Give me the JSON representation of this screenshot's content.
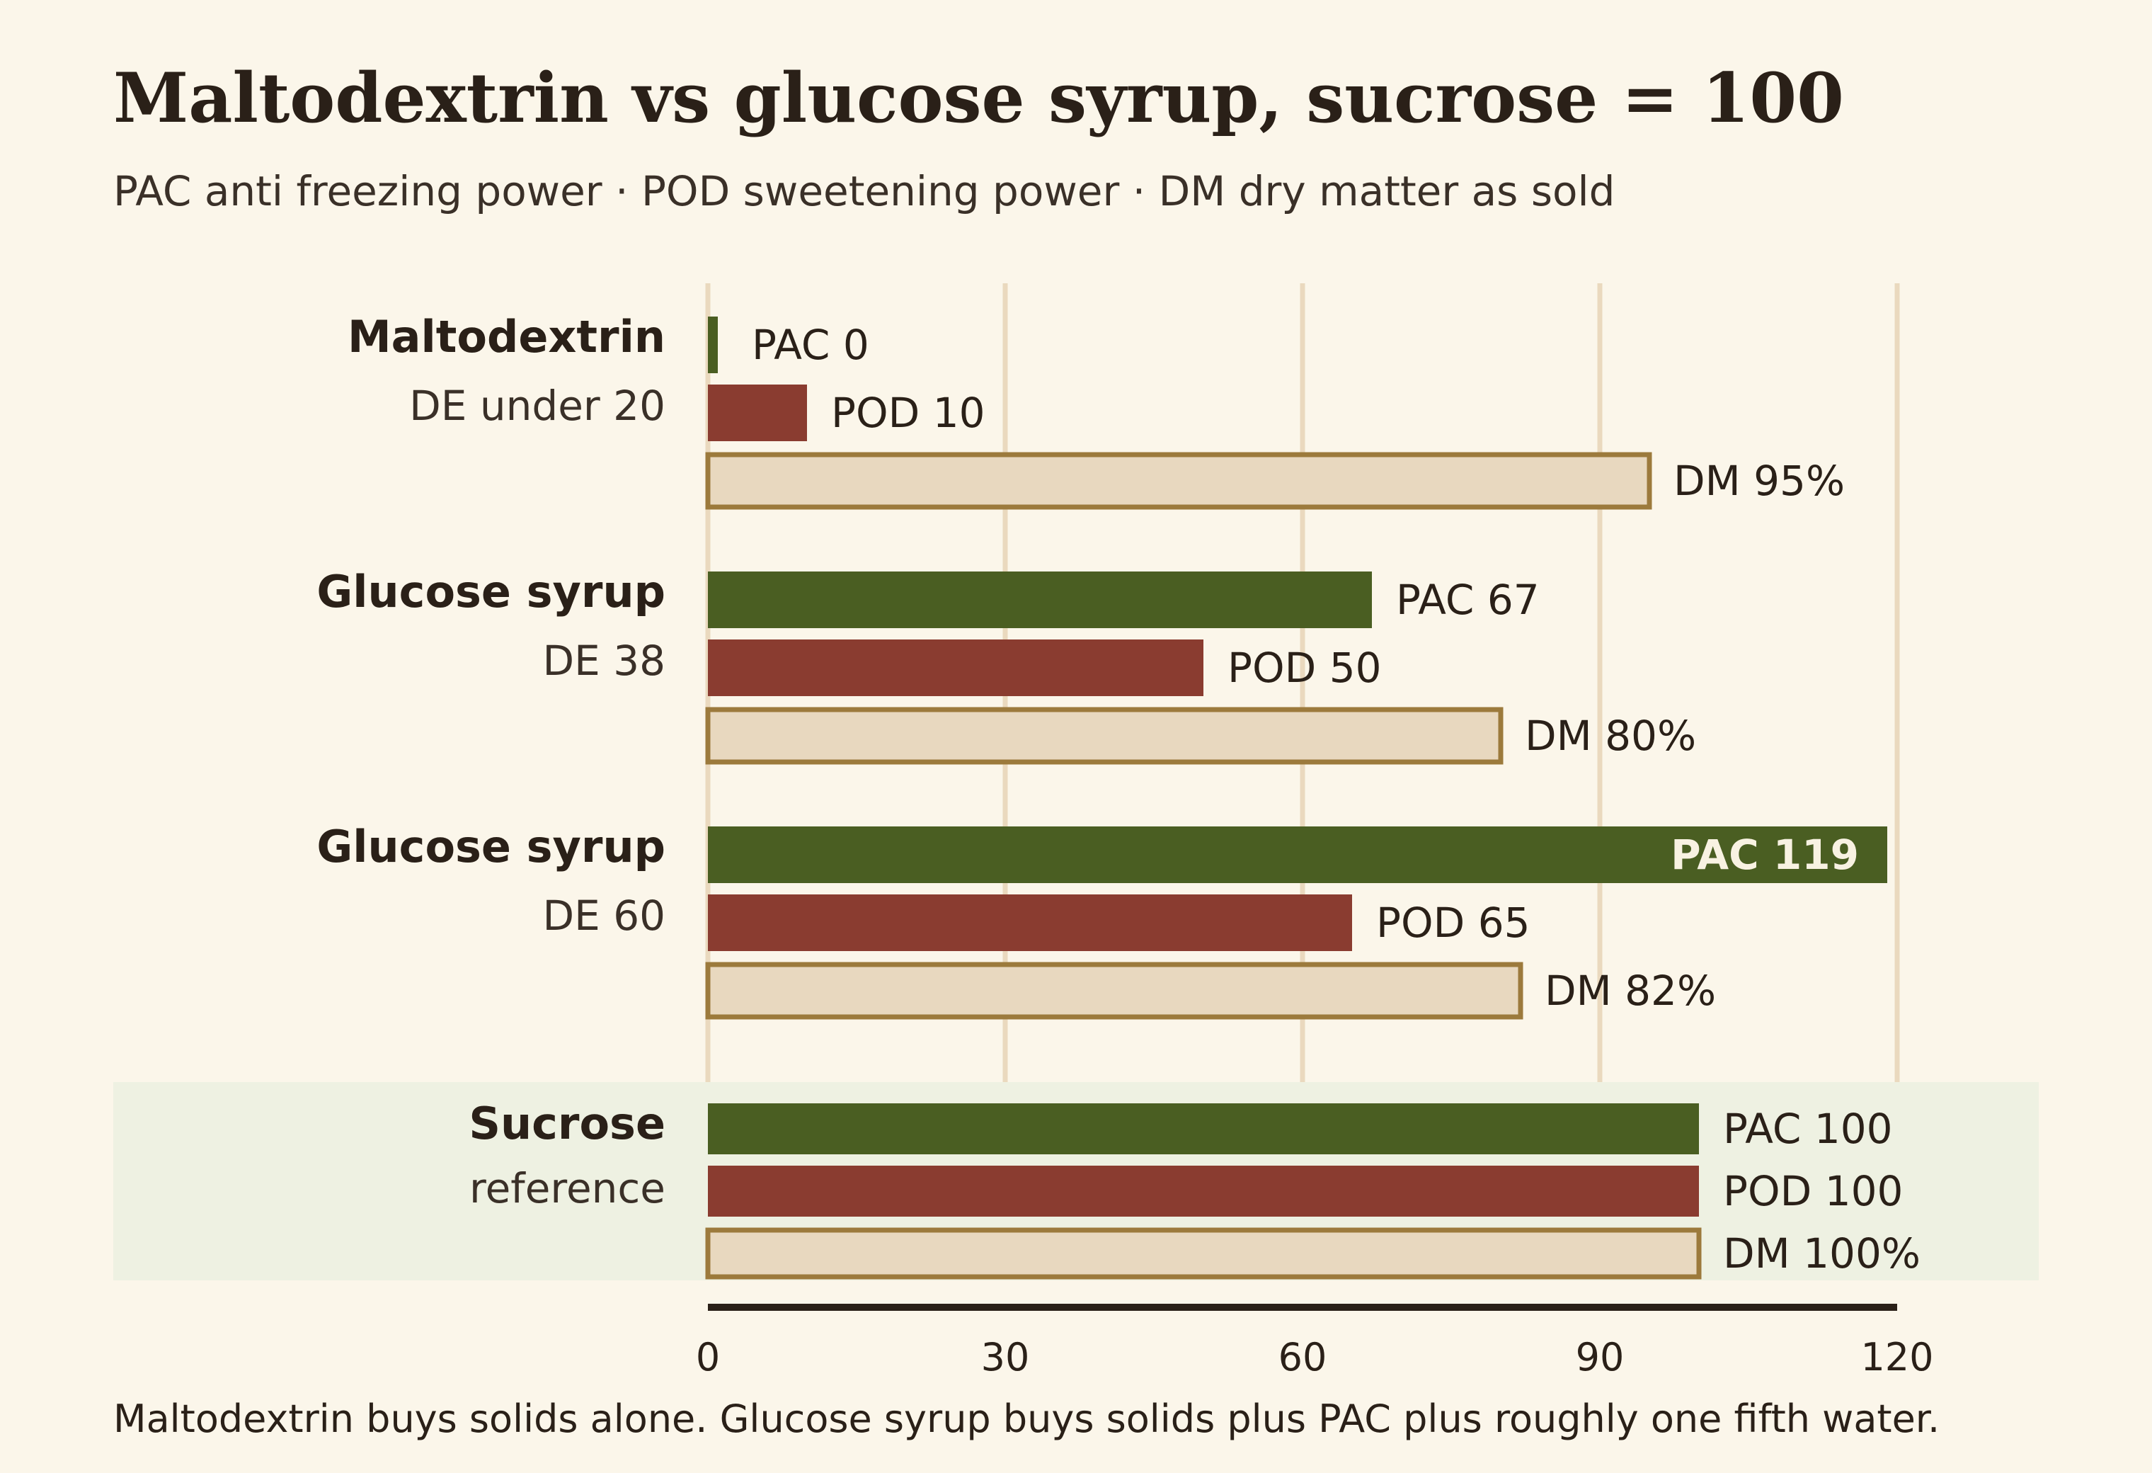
{
  "chart_data": {
    "type": "bar",
    "orientation": "horizontal",
    "title": "Maltodextrin vs glucose syrup, sucrose = 100",
    "subtitle": "PAC anti freezing power · POD sweetening power · DM dry matter as sold",
    "footnote": "Maltodextrin buys solids alone. Glucose syrup buys solids plus PAC plus roughly one fifth water.",
    "xlim": [
      0,
      120
    ],
    "xticks": [
      "0",
      "30",
      "60",
      "90",
      "120"
    ],
    "grid": true,
    "colors": {
      "PAC": "#4a5e22",
      "POD": "#8a3c30",
      "DM_fill": "#e8d8bf",
      "DM_stroke": "#9c7a3c",
      "highlight_band": "#eef1e2",
      "gridline": "#ead9be",
      "axis": "#2a2018"
    },
    "groups": [
      {
        "name": "Maltodextrin",
        "sub": "DE under 20",
        "highlight": false,
        "bars": [
          {
            "metric": "PAC",
            "value": 0,
            "label": "PAC 0"
          },
          {
            "metric": "POD",
            "value": 10,
            "label": "POD 10"
          },
          {
            "metric": "DM",
            "value": 95,
            "label": "DM 95%"
          }
        ]
      },
      {
        "name": "Glucose syrup",
        "sub": "DE 38",
        "highlight": false,
        "bars": [
          {
            "metric": "PAC",
            "value": 67,
            "label": "PAC 67"
          },
          {
            "metric": "POD",
            "value": 50,
            "label": "POD 50"
          },
          {
            "metric": "DM",
            "value": 80,
            "label": "DM 80%"
          }
        ]
      },
      {
        "name": "Glucose syrup",
        "sub": "DE 60",
        "highlight": false,
        "bars": [
          {
            "metric": "PAC",
            "value": 119,
            "label": "PAC 119",
            "label_inside": true
          },
          {
            "metric": "POD",
            "value": 65,
            "label": "POD 65"
          },
          {
            "metric": "DM",
            "value": 82,
            "label": "DM 82%"
          }
        ]
      },
      {
        "name": "Sucrose",
        "sub": "reference",
        "highlight": true,
        "bars": [
          {
            "metric": "PAC",
            "value": 100,
            "label": "PAC 100"
          },
          {
            "metric": "POD",
            "value": 100,
            "label": "POD 100"
          },
          {
            "metric": "DM",
            "value": 100,
            "label": "DM 100%"
          }
        ]
      }
    ]
  }
}
